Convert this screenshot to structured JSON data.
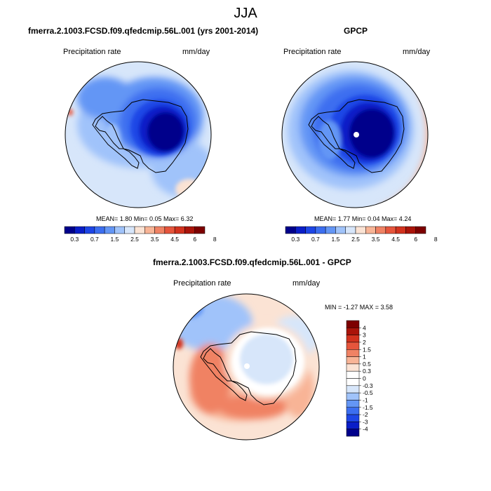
{
  "figure_title": "JJA",
  "palette": {
    "horizontal": [
      "#00008b",
      "#0a1ec8",
      "#1e46e6",
      "#3c6ef0",
      "#6496f5",
      "#a0c3fa",
      "#d7e6fa",
      "#fbe3d4",
      "#f8b496",
      "#f08264",
      "#e6553c",
      "#d2321e",
      "#aa140a",
      "#7d0000"
    ],
    "vertical": [
      "#7d0000",
      "#aa140a",
      "#d2321e",
      "#e6553c",
      "#f08264",
      "#f8b496",
      "#fbe3d4",
      "#ffffff",
      "#d7e6fa",
      "#a0c3fa",
      "#6496f5",
      "#3c6ef0",
      "#1e46e6",
      "#0a1ec8",
      "#00008b"
    ]
  },
  "panels": {
    "model": {
      "title": "fmerra.2.1003.FCSD.f09.qfedcmip.56L.001 (yrs 2001-2014)",
      "left_label": "Precipitation rate",
      "right_label": "mm/day",
      "stats": "MEAN=   1.80  Min=   0.05  Max=   6.32",
      "colorbar_ticks": [
        "0.3",
        "0.7",
        "1.5",
        "2.5",
        "3.5",
        "4.5",
        "6",
        "8"
      ]
    },
    "obs": {
      "title": "GPCP",
      "left_label": "Precipitation rate",
      "right_label": "mm/day",
      "stats": "MEAN=   1.77  Min=   0.04  Max=   4.24",
      "colorbar_ticks": [
        "0.3",
        "0.7",
        "1.5",
        "2.5",
        "3.5",
        "4.5",
        "6",
        "8"
      ]
    },
    "diff": {
      "title": "fmerra.2.1003.FCSD.f09.qfedcmip.56L.001 - GPCP",
      "left_label": "Precipitation rate",
      "right_label": "mm/day",
      "stats": "MIN =  -1.27 MAX =   3.58",
      "colorbar_ticks": [
        "4",
        "3",
        "2",
        "1.5",
        "1",
        "0.5",
        "0.3",
        "0",
        "-0.3",
        "-0.5",
        "-1",
        "-1.5",
        "-2",
        "-3",
        "-4"
      ]
    }
  },
  "chart_data": [
    {
      "type": "heatmap",
      "title": "fmerra.2.1003.FCSD.f09.qfedcmip.56L.001 (yrs 2001-2014)",
      "units": "mm/day",
      "mean": 1.8,
      "min": 0.05,
      "max": 6.32,
      "levels": [
        0.3,
        0.7,
        1.5,
        2.5,
        3.5,
        4.5,
        6,
        8
      ]
    },
    {
      "type": "heatmap",
      "title": "GPCP",
      "units": "mm/day",
      "mean": 1.77,
      "min": 0.04,
      "max": 4.24,
      "levels": [
        0.3,
        0.7,
        1.5,
        2.5,
        3.5,
        4.5,
        6,
        8
      ]
    },
    {
      "type": "heatmap",
      "title": "fmerra.2.1003.FCSD.f09.qfedcmip.56L.001 - GPCP",
      "units": "mm/day",
      "min": -1.27,
      "max": 3.58,
      "levels": [
        4,
        3,
        2,
        1.5,
        1,
        0.5,
        0.3,
        0,
        -0.3,
        -0.5,
        -1,
        -1.5,
        -2,
        -3,
        -4
      ]
    }
  ]
}
